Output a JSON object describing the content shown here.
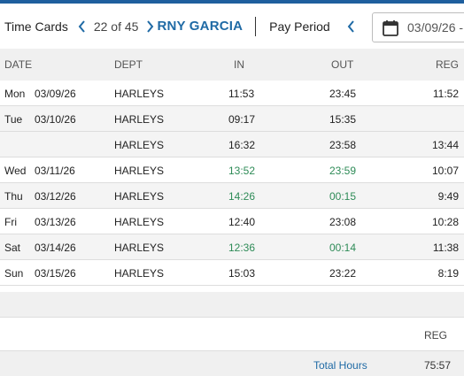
{
  "toolbar": {
    "title": "Time Cards",
    "pager": "22 of 45",
    "employee": "RNY GARCIA",
    "pay_period_label": "Pay Period",
    "period_date": "03/09/26 -",
    "icons": {
      "prev": "chevron-left-icon",
      "next": "chevron-right-icon",
      "calendar": "calendar-icon"
    },
    "accent_color": "#1f6aa5"
  },
  "table": {
    "columns": {
      "date": "DATE",
      "dept": "DEPT",
      "in": "IN",
      "out": "OUT",
      "reg": "REG"
    },
    "rows": [
      {
        "day": "Mon",
        "date": "03/09/26",
        "dept": "HARLEYS",
        "in": "11:53",
        "out": "23:45",
        "reg": "11:52"
      },
      {
        "day": "Tue",
        "date": "03/10/26",
        "dept": "HARLEYS",
        "in": "09:17",
        "out": "15:35",
        "reg": ""
      },
      {
        "day": "",
        "date": "",
        "dept": "HARLEYS",
        "in": "16:32",
        "out": "23:58",
        "reg": "13:44"
      },
      {
        "day": "Wed",
        "date": "03/11/26",
        "dept": "HARLEYS",
        "in": "13:52",
        "out": "23:59",
        "reg": "10:07",
        "highlight": true
      },
      {
        "day": "Thu",
        "date": "03/12/26",
        "dept": "HARLEYS",
        "in": "14:26",
        "out": "00:15",
        "reg": "9:49",
        "highlight": true
      },
      {
        "day": "Fri",
        "date": "03/13/26",
        "dept": "HARLEYS",
        "in": "12:40",
        "out": "23:08",
        "reg": "10:28"
      },
      {
        "day": "Sat",
        "date": "03/14/26",
        "dept": "HARLEYS",
        "in": "12:36",
        "out": "00:14",
        "reg": "11:38",
        "highlight": true
      },
      {
        "day": "Sun",
        "date": "03/15/26",
        "dept": "HARLEYS",
        "in": "15:03",
        "out": "23:22",
        "reg": "8:19"
      }
    ],
    "highlight_color": "#2e8b57"
  },
  "summary": {
    "reg_label": "REG",
    "total_label": "Total Hours",
    "total_value": "75:57"
  }
}
